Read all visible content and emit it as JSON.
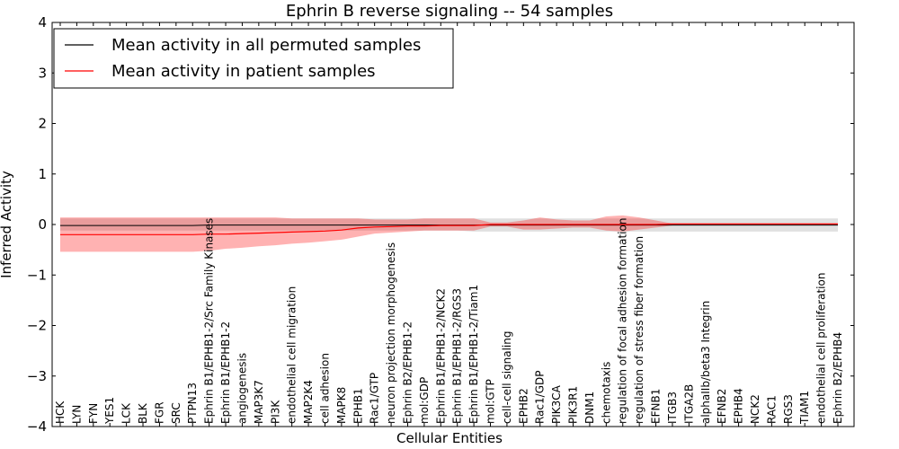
{
  "chart_data": {
    "type": "line",
    "title": "Ephrin B reverse signaling -- 54 samples",
    "xlabel": "Cellular Entities",
    "ylabel": "Inferred Activity",
    "ylim": [
      -4,
      4
    ],
    "yticks": [
      -4,
      -3,
      -2,
      -1,
      0,
      1,
      2,
      3,
      4
    ],
    "ytick_labels": [
      "−4",
      "−3",
      "−2",
      "−1",
      "0",
      "1",
      "2",
      "3",
      "4"
    ],
    "legend_position": "top-left",
    "categories": [
      "HCK",
      "LYN",
      "FYN",
      "YES1",
      "LCK",
      "BLK",
      "FGR",
      "SRC",
      "PTPN13",
      "Ephrin B1/EPHB1-2/Src Family Kinases",
      "Ephrin B1/EPHB1-2",
      "angiogenesis",
      "MAP3K7",
      "PI3K",
      "endothelial cell migration",
      "MAP2K4",
      "cell adhesion",
      "MAPK8",
      "EPHB1",
      "Rac1/GTP",
      "neuron projection morphogenesis",
      "Ephrin B2/EPHB1-2",
      "mol:GDP",
      "Ephrin B1/EPHB1-2/NCK2",
      "Ephrin B1/EPHB1-2/RGS3",
      "Ephrin B1/EPHB1-2/Tiam1",
      "mol:GTP",
      "cell-cell signaling",
      "EPHB2",
      "Rac1/GDP",
      "PIK3CA",
      "PIK3R1",
      "DNM1",
      "chemotaxis",
      "regulation of focal adhesion formation",
      "regulation of stress fiber formation",
      "EFNB1",
      "ITGB3",
      "ITGA2B",
      "alphaIIb/beta3 Integrin",
      "EFNB2",
      "EPHB4",
      "NCK2",
      "RAC1",
      "RGS3",
      "TIAM1",
      "endothelial cell proliferation",
      "Ephrin B2/EPHB4"
    ],
    "series": [
      {
        "name": "Mean activity in all permuted samples",
        "color": "#000000",
        "values": [
          -0.02,
          -0.02,
          -0.02,
          -0.02,
          -0.02,
          -0.02,
          -0.02,
          -0.02,
          -0.02,
          -0.01,
          -0.01,
          -0.01,
          -0.01,
          -0.01,
          -0.01,
          -0.01,
          -0.01,
          -0.01,
          -0.01,
          -0.01,
          -0.01,
          -0.01,
          -0.01,
          -0.01,
          -0.01,
          -0.01,
          -0.01,
          -0.01,
          -0.01,
          -0.01,
          -0.01,
          -0.01,
          -0.01,
          -0.01,
          -0.01,
          -0.01,
          -0.01,
          -0.01,
          -0.01,
          -0.01,
          -0.01,
          -0.01,
          -0.01,
          -0.01,
          -0.01,
          -0.01,
          -0.01,
          -0.01
        ],
        "band_low": [
          -0.12,
          -0.12,
          -0.12,
          -0.12,
          -0.12,
          -0.12,
          -0.12,
          -0.12,
          -0.12,
          -0.12,
          -0.12,
          -0.12,
          -0.12,
          -0.12,
          -0.12,
          -0.12,
          -0.12,
          -0.12,
          -0.12,
          -0.12,
          -0.12,
          -0.12,
          -0.12,
          -0.12,
          -0.12,
          -0.14,
          -0.14,
          -0.14,
          -0.14,
          -0.14,
          -0.14,
          -0.14,
          -0.14,
          -0.14,
          -0.14,
          -0.14,
          -0.14,
          -0.14,
          -0.14,
          -0.14,
          -0.14,
          -0.14,
          -0.14,
          -0.14,
          -0.14,
          -0.14,
          -0.14,
          -0.14
        ],
        "band_high": [
          0.12,
          0.12,
          0.12,
          0.12,
          0.12,
          0.12,
          0.12,
          0.12,
          0.12,
          0.12,
          0.12,
          0.12,
          0.12,
          0.12,
          0.12,
          0.12,
          0.12,
          0.12,
          0.12,
          0.12,
          0.12,
          0.12,
          0.12,
          0.12,
          0.12,
          0.12,
          0.12,
          0.12,
          0.12,
          0.12,
          0.12,
          0.12,
          0.12,
          0.12,
          0.12,
          0.12,
          0.12,
          0.12,
          0.12,
          0.12,
          0.12,
          0.12,
          0.12,
          0.12,
          0.12,
          0.12,
          0.12,
          0.12
        ]
      },
      {
        "name": "Mean activity in patient samples",
        "color": "#ff0000",
        "values": [
          -0.2,
          -0.2,
          -0.2,
          -0.2,
          -0.2,
          -0.2,
          -0.2,
          -0.2,
          -0.2,
          -0.19,
          -0.19,
          -0.18,
          -0.17,
          -0.16,
          -0.15,
          -0.14,
          -0.13,
          -0.11,
          -0.07,
          -0.05,
          -0.04,
          -0.03,
          -0.03,
          -0.02,
          -0.02,
          -0.02,
          0.0,
          0.0,
          0.0,
          0.0,
          0.0,
          0.0,
          0.0,
          0.0,
          0.0,
          0.0,
          0.0,
          0.01,
          0.01,
          0.01,
          0.01,
          0.01,
          0.01,
          0.01,
          0.01,
          0.01,
          0.01,
          0.01
        ],
        "band_low": [
          -0.54,
          -0.54,
          -0.54,
          -0.54,
          -0.54,
          -0.54,
          -0.54,
          -0.54,
          -0.54,
          -0.52,
          -0.48,
          -0.46,
          -0.43,
          -0.41,
          -0.38,
          -0.36,
          -0.33,
          -0.3,
          -0.24,
          -0.18,
          -0.16,
          -0.14,
          -0.12,
          -0.12,
          -0.12,
          -0.12,
          -0.04,
          -0.04,
          -0.1,
          -0.1,
          -0.08,
          -0.06,
          -0.06,
          -0.12,
          -0.14,
          -0.1,
          -0.06,
          -0.02,
          -0.02,
          -0.02,
          -0.02,
          -0.02,
          -0.02,
          -0.02,
          -0.02,
          -0.02,
          -0.02,
          -0.02
        ],
        "band_high": [
          0.14,
          0.14,
          0.14,
          0.14,
          0.14,
          0.14,
          0.14,
          0.14,
          0.14,
          0.14,
          0.14,
          0.14,
          0.14,
          0.14,
          0.12,
          0.12,
          0.12,
          0.12,
          0.12,
          0.1,
          0.1,
          0.1,
          0.12,
          0.12,
          0.12,
          0.12,
          0.04,
          0.04,
          0.08,
          0.14,
          0.1,
          0.08,
          0.08,
          0.16,
          0.18,
          0.14,
          0.08,
          0.02,
          0.02,
          0.02,
          0.02,
          0.02,
          0.02,
          0.02,
          0.02,
          0.02,
          0.02,
          0.02
        ]
      }
    ]
  }
}
